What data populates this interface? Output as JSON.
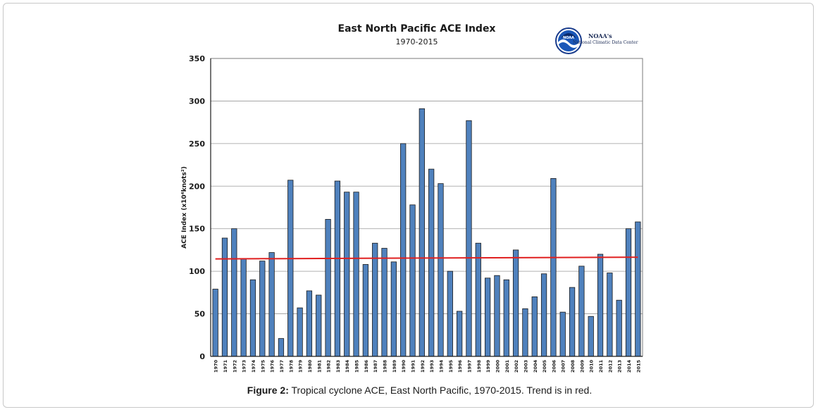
{
  "figure": {
    "caption_label": "Figure 2:",
    "caption_text": " Tropical cyclone ACE, East North Pacific, 1970-2015. Trend is in red."
  },
  "logo": {
    "line1": "NOAA's",
    "line2": "National Climatic Data Center",
    "badge": "NOAA"
  },
  "chart_data": {
    "type": "bar",
    "title": "East North Pacific ACE Index",
    "subtitle": "1970-2015",
    "ylabel": "ACE Index (x10⁴knots²)",
    "xlabel": "",
    "ylim": [
      0,
      350
    ],
    "yticks": [
      0,
      50,
      100,
      150,
      200,
      250,
      300,
      350
    ],
    "grid": true,
    "bar_color": "#4f81bd",
    "trend_color": "#e02020",
    "categories": [
      "1970",
      "1971",
      "1972",
      "1973",
      "1974",
      "1975",
      "1976",
      "1977",
      "1978",
      "1979",
      "1980",
      "1981",
      "1982",
      "1983",
      "1984",
      "1985",
      "1986",
      "1987",
      "1988",
      "1989",
      "1990",
      "1991",
      "1992",
      "1993",
      "1994",
      "1995",
      "1996",
      "1997",
      "1998",
      "1999",
      "2000",
      "2001",
      "2002",
      "2003",
      "2004",
      "2005",
      "2006",
      "2007",
      "2008",
      "2009",
      "2010",
      "2011",
      "2012",
      "2013",
      "2014",
      "2015"
    ],
    "values": [
      79,
      139,
      150,
      115,
      90,
      112,
      122,
      21,
      207,
      57,
      77,
      72,
      161,
      206,
      193,
      193,
      108,
      133,
      127,
      111,
      250,
      178,
      291,
      220,
      203,
      100,
      53,
      277,
      133,
      92,
      95,
      90,
      125,
      56,
      70,
      97,
      209,
      52,
      81,
      106,
      47,
      120,
      98,
      66,
      150,
      158
    ],
    "trend": {
      "start": 114.5,
      "end": 116.5
    }
  }
}
